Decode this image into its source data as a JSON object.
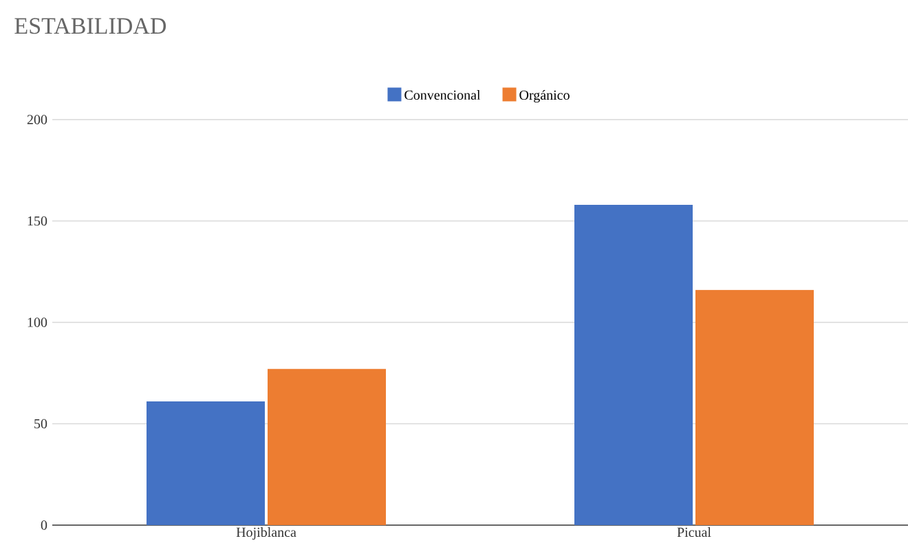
{
  "chart_data": {
    "type": "bar",
    "title": "ESTABILIDAD",
    "categories": [
      "Hojiblanca",
      "Picual"
    ],
    "series": [
      {
        "name": "Convencional",
        "color": "#4472c4",
        "values": [
          61,
          158
        ]
      },
      {
        "name": "Orgánico",
        "color": "#ed7d31",
        "values": [
          77,
          116
        ]
      }
    ],
    "ylim": [
      0,
      200
    ],
    "yticks": [
      0,
      50,
      100,
      150,
      200
    ],
    "grid": "y",
    "legend": "top"
  }
}
